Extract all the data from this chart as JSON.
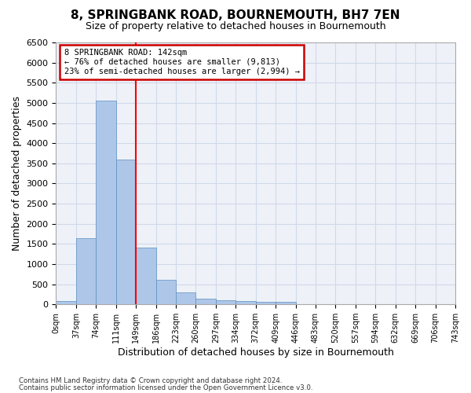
{
  "title": "8, SPRINGBANK ROAD, BOURNEMOUTH, BH7 7EN",
  "subtitle": "Size of property relative to detached houses in Bournemouth",
  "xlabel": "Distribution of detached houses by size in Bournemouth",
  "ylabel": "Number of detached properties",
  "footer_line1": "Contains HM Land Registry data © Crown copyright and database right 2024.",
  "footer_line2": "Contains public sector information licensed under the Open Government Licence v3.0.",
  "bin_labels": [
    "0sqm",
    "37sqm",
    "74sqm",
    "111sqm",
    "149sqm",
    "186sqm",
    "223sqm",
    "260sqm",
    "297sqm",
    "334sqm",
    "372sqm",
    "409sqm",
    "446sqm",
    "483sqm",
    "520sqm",
    "557sqm",
    "594sqm",
    "632sqm",
    "669sqm",
    "706sqm",
    "743sqm"
  ],
  "bar_heights": [
    75,
    1640,
    5060,
    3590,
    1400,
    610,
    290,
    145,
    100,
    75,
    60,
    55,
    0,
    0,
    0,
    0,
    0,
    0,
    0,
    0
  ],
  "bar_color": "#aec6e8",
  "bar_edge_color": "#5a8fc0",
  "ylim": [
    0,
    6500
  ],
  "yticks": [
    0,
    500,
    1000,
    1500,
    2000,
    2500,
    3000,
    3500,
    4000,
    4500,
    5000,
    5500,
    6000,
    6500
  ],
  "red_line_x": 4.0,
  "annotation_text_line1": "8 SPRINGBANK ROAD: 142sqm",
  "annotation_text_line2": "← 76% of detached houses are smaller (9,813)",
  "annotation_text_line3": "23% of semi-detached houses are larger (2,994) →",
  "annotation_box_color": "#cc0000",
  "grid_color": "#d0d8e8",
  "background_color": "#eef2f8"
}
